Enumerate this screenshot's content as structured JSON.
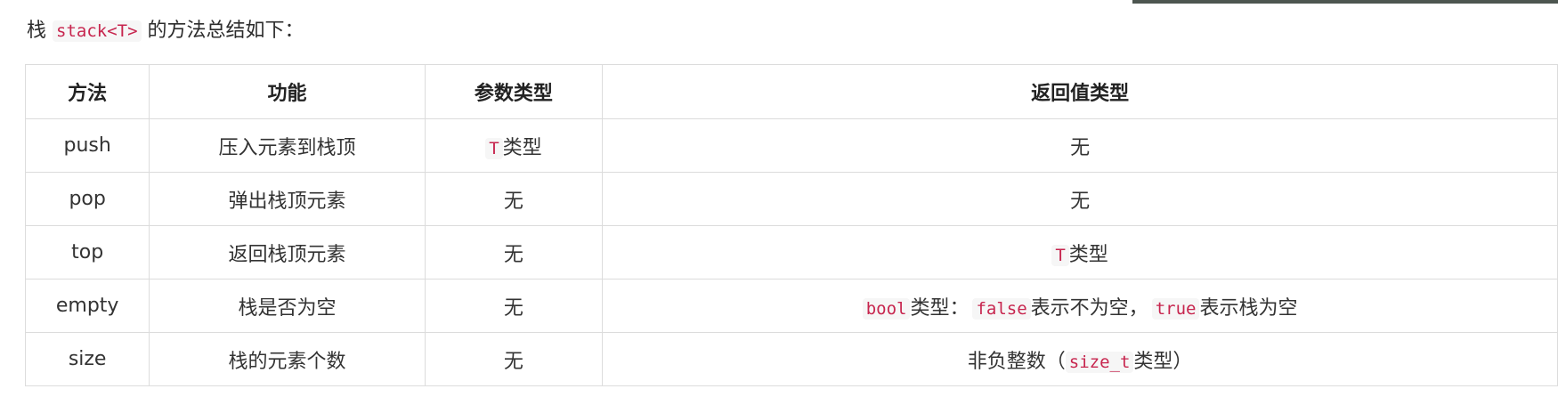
{
  "intro": {
    "prefix": "栈",
    "code": "stack<T>",
    "suffix": "的方法总结如下："
  },
  "table": {
    "headers": [
      "方法",
      "功能",
      "参数类型",
      "返回值类型"
    ],
    "rows": [
      {
        "method": "push",
        "function": "压入元素到栈顶",
        "param": {
          "code": "T",
          "text": "类型"
        },
        "ret": {
          "text": "无"
        }
      },
      {
        "method": "pop",
        "function": "弹出栈顶元素",
        "param": {
          "text": "无"
        },
        "ret": {
          "text": "无"
        }
      },
      {
        "method": "top",
        "function": "返回栈顶元素",
        "param": {
          "text": "无"
        },
        "ret": {
          "code": "T",
          "text": "类型"
        }
      },
      {
        "method": "empty",
        "function": "栈是否为空",
        "param": {
          "text": "无"
        },
        "ret": {
          "code1": "bool",
          "text1": "类型：",
          "code2": "false",
          "text2": "表示不为空，",
          "code3": "true",
          "text3": "表示栈为空"
        }
      },
      {
        "method": "size",
        "function": "栈的元素个数",
        "param": {
          "text": "无"
        },
        "ret": {
          "text1": "非负整数（",
          "code1": "size_t",
          "text2": "类型）"
        }
      }
    ]
  }
}
